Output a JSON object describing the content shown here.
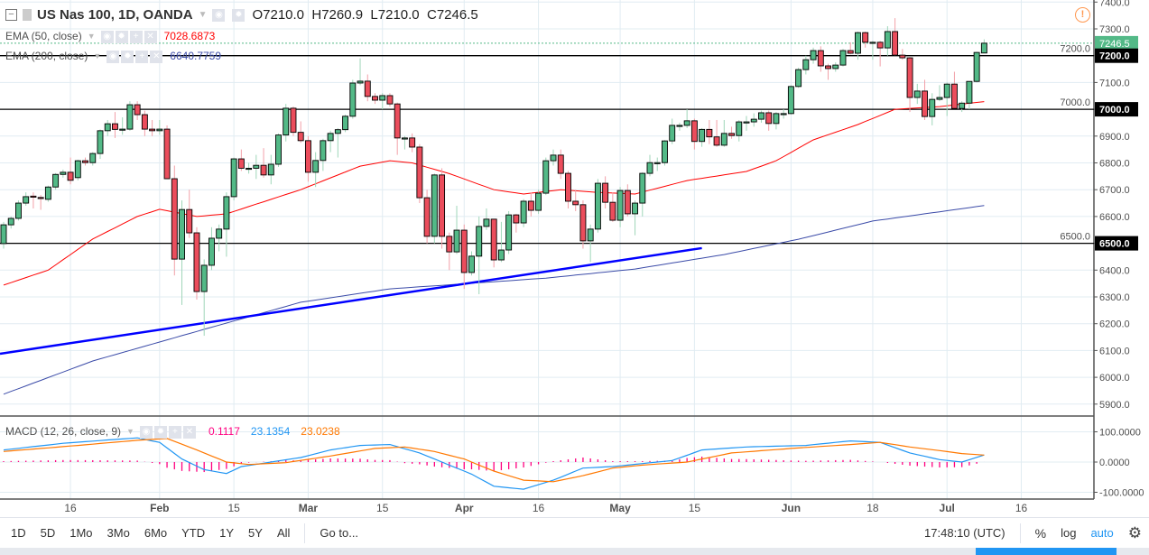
{
  "header": {
    "collapse_icon": "minus-square-icon",
    "symbol": "US Nas 100, 1D, OANDA",
    "open": "O7210.0",
    "high": "H7260.9",
    "low": "L7210.0",
    "close": "C7246.5"
  },
  "indicators": [
    {
      "label": "EMA (50, close)",
      "value": "7028.6873",
      "color": "#ff0000"
    },
    {
      "label": "EMA (200, close)",
      "value": "6640.7759",
      "color": "#3b4ba8"
    }
  ],
  "macd_legend": {
    "label": "MACD (12, 26, close, 9)",
    "hist": "0.1117",
    "macd": "23.1354",
    "signal": "23.0238",
    "hist_color": "#ff0080",
    "macd_color": "#2196f3",
    "signal_color": "#ff7800"
  },
  "alert_icon": "exclamation-circle-icon",
  "colors": {
    "up": "#53b987",
    "down": "#eb4d5c",
    "trendline": "#0000ff",
    "grid": "#e1ecf2"
  },
  "chart_data": {
    "type": "candlestick",
    "x_tick_labels": [
      "16",
      "Feb",
      "15",
      "Mar",
      "15",
      "Apr",
      "16",
      "May",
      "15",
      "Jun",
      "18",
      "Jul",
      "16"
    ],
    "x_tick_bar_index": [
      9,
      21,
      31,
      41,
      51,
      62,
      72,
      83,
      93,
      106,
      117,
      127,
      137
    ],
    "y_tick_labels": [
      "7400.0",
      "7300.0",
      "7200.0",
      "7100.0",
      "7000.0",
      "6900.0",
      "6800.0",
      "6700.0",
      "6600.0",
      "6500.0",
      "6400.0",
      "6300.0",
      "6200.0",
      "6100.0",
      "6000.0",
      "5900.0"
    ],
    "ylim": [
      5870,
      7405
    ],
    "price_labels": [
      {
        "text": "7246.5",
        "kind": "last"
      },
      {
        "text": "7200.0",
        "kind": "hline"
      },
      {
        "text": "7000.0",
        "kind": "hline"
      },
      {
        "text": "6500.0",
        "kind": "hline"
      }
    ],
    "horizontal_lines": [
      7200,
      7000,
      6500
    ],
    "trendline": {
      "from": [
        0,
        6088
      ],
      "to": [
        94,
        6482
      ]
    },
    "candles": [
      [
        6499,
        6580,
        6480,
        6569
      ],
      [
        6569,
        6600,
        6555,
        6593
      ],
      [
        6593,
        6660,
        6585,
        6650
      ],
      [
        6650,
        6690,
        6640,
        6674
      ],
      [
        6676,
        6690,
        6630,
        6672
      ],
      [
        6671,
        6680,
        6625,
        6670
      ],
      [
        6664,
        6715,
        6655,
        6710
      ],
      [
        6710,
        6762,
        6700,
        6757
      ],
      [
        6757,
        6775,
        6745,
        6765
      ],
      [
        6765,
        6820,
        6720,
        6735
      ],
      [
        6745,
        6812,
        6735,
        6808
      ],
      [
        6808,
        6820,
        6790,
        6801
      ],
      [
        6801,
        6840,
        6790,
        6835
      ],
      [
        6835,
        6925,
        6815,
        6920
      ],
      [
        6920,
        6960,
        6900,
        6946
      ],
      [
        6946,
        6990,
        6893,
        6925
      ],
      [
        6925,
        6970,
        6905,
        6926
      ],
      [
        6926,
        7030,
        6920,
        7017
      ],
      [
        7017,
        7030,
        6960,
        6980
      ],
      [
        6980,
        6995,
        6900,
        6926
      ],
      [
        6926,
        6960,
        6900,
        6920
      ],
      [
        6920,
        6960,
        6905,
        6926
      ],
      [
        6926,
        6940,
        6740,
        6741
      ],
      [
        6741,
        6790,
        6380,
        6441
      ],
      [
        6441,
        6660,
        6270,
        6626
      ],
      [
        6626,
        6700,
        6520,
        6539
      ],
      [
        6539,
        6560,
        6290,
        6320
      ],
      [
        6320,
        6440,
        6155,
        6418
      ],
      [
        6418,
        6560,
        6400,
        6519
      ],
      [
        6519,
        6570,
        6470,
        6553
      ],
      [
        6553,
        6690,
        6450,
        6674
      ],
      [
        6674,
        6820,
        6660,
        6815
      ],
      [
        6815,
        6850,
        6770,
        6780
      ],
      [
        6780,
        6800,
        6760,
        6780
      ],
      [
        6780,
        6830,
        6740,
        6791
      ],
      [
        6791,
        6855,
        6745,
        6755
      ],
      [
        6755,
        6830,
        6720,
        6795
      ],
      [
        6795,
        6910,
        6785,
        6904
      ],
      [
        6904,
        7020,
        6880,
        7004
      ],
      [
        7004,
        7010,
        6900,
        6914
      ],
      [
        6914,
        6955,
        6875,
        6883
      ],
      [
        6883,
        6900,
        6730,
        6765
      ],
      [
        6765,
        6840,
        6710,
        6809
      ],
      [
        6809,
        6890,
        6770,
        6883
      ],
      [
        6883,
        6920,
        6840,
        6910
      ],
      [
        6910,
        6930,
        6820,
        6924
      ],
      [
        6924,
        6980,
        6915,
        6974
      ],
      [
        6974,
        7110,
        6965,
        7098
      ],
      [
        7098,
        7190,
        7090,
        7105
      ],
      [
        7105,
        7130,
        7030,
        7048
      ],
      [
        7048,
        7060,
        7020,
        7034
      ],
      [
        7034,
        7060,
        7000,
        7051
      ],
      [
        7051,
        7060,
        7010,
        7020
      ],
      [
        7020,
        7025,
        6830,
        6893
      ],
      [
        6893,
        6900,
        6850,
        6893
      ],
      [
        6893,
        6910,
        6840,
        6859
      ],
      [
        6859,
        6870,
        6650,
        6670
      ],
      [
        6670,
        6700,
        6500,
        6526
      ],
      [
        6526,
        6760,
        6500,
        6755
      ],
      [
        6755,
        6780,
        6480,
        6526
      ],
      [
        6526,
        6540,
        6400,
        6468
      ],
      [
        6468,
        6640,
        6460,
        6549
      ],
      [
        6549,
        6570,
        6330,
        6391
      ],
      [
        6391,
        6470,
        6380,
        6452
      ],
      [
        6452,
        6600,
        6310,
        6563
      ],
      [
        6563,
        6630,
        6550,
        6590
      ],
      [
        6590,
        6590,
        6410,
        6438
      ],
      [
        6438,
        6580,
        6430,
        6475
      ],
      [
        6475,
        6620,
        6460,
        6606
      ],
      [
        6606,
        6610,
        6540,
        6576
      ],
      [
        6576,
        6665,
        6560,
        6657
      ],
      [
        6657,
        6690,
        6600,
        6623
      ],
      [
        6623,
        6700,
        6610,
        6687
      ],
      [
        6687,
        6820,
        6680,
        6808
      ],
      [
        6808,
        6850,
        6790,
        6829
      ],
      [
        6829,
        6850,
        6740,
        6761
      ],
      [
        6761,
        6770,
        6630,
        6657
      ],
      [
        6657,
        6700,
        6620,
        6644
      ],
      [
        6644,
        6660,
        6480,
        6509
      ],
      [
        6509,
        6570,
        6430,
        6553
      ],
      [
        6553,
        6740,
        6540,
        6724
      ],
      [
        6724,
        6750,
        6630,
        6653
      ],
      [
        6653,
        6690,
        6580,
        6586
      ],
      [
        6586,
        6710,
        6560,
        6697
      ],
      [
        6697,
        6720,
        6600,
        6610
      ],
      [
        6610,
        6660,
        6530,
        6650
      ],
      [
        6650,
        6765,
        6600,
        6761
      ],
      [
        6761,
        6830,
        6750,
        6801
      ],
      [
        6801,
        6820,
        6770,
        6801
      ],
      [
        6801,
        6885,
        6790,
        6882
      ],
      [
        6882,
        6965,
        6870,
        6940
      ],
      [
        6940,
        6950,
        6920,
        6940
      ],
      [
        6940,
        7000,
        6930,
        6957
      ],
      [
        6957,
        6965,
        6850,
        6880
      ],
      [
        6880,
        6930,
        6860,
        6925
      ],
      [
        6925,
        6960,
        6870,
        6897
      ],
      [
        6897,
        6960,
        6860,
        6866
      ],
      [
        6866,
        6960,
        6860,
        6910
      ],
      [
        6910,
        6935,
        6890,
        6902
      ],
      [
        6902,
        6960,
        6880,
        6953
      ],
      [
        6953,
        6975,
        6920,
        6953
      ],
      [
        6953,
        6985,
        6935,
        6963
      ],
      [
        6963,
        6995,
        6950,
        6987
      ],
      [
        6987,
        6995,
        6920,
        6947
      ],
      [
        6947,
        6990,
        6925,
        6984
      ],
      [
        6984,
        7000,
        6965,
        6984
      ],
      [
        6984,
        7090,
        6980,
        7085
      ],
      [
        7085,
        7155,
        7080,
        7148
      ],
      [
        7148,
        7200,
        7130,
        7185
      ],
      [
        7185,
        7230,
        7170,
        7219
      ],
      [
        7219,
        7235,
        7140,
        7162
      ],
      [
        7162,
        7170,
        7110,
        7152
      ],
      [
        7152,
        7175,
        7140,
        7165
      ],
      [
        7165,
        7225,
        7160,
        7219
      ],
      [
        7219,
        7250,
        7205,
        7209
      ],
      [
        7209,
        7290,
        7185,
        7286
      ],
      [
        7286,
        7290,
        7230,
        7250
      ],
      [
        7250,
        7255,
        7185,
        7250
      ],
      [
        7250,
        7255,
        7160,
        7229
      ],
      [
        7229,
        7310,
        7200,
        7290
      ],
      [
        7290,
        7340,
        7200,
        7202
      ],
      [
        7202,
        7225,
        7185,
        7192
      ],
      [
        7192,
        7195,
        6990,
        7044
      ],
      [
        7044,
        7095,
        7020,
        7068
      ],
      [
        7068,
        7110,
        6960,
        6973
      ],
      [
        6973,
        7060,
        6940,
        7037
      ],
      [
        7037,
        7090,
        7030,
        7044
      ],
      [
        7044,
        7100,
        6975,
        7094
      ],
      [
        7094,
        7140,
        7003,
        7003
      ],
      [
        7003,
        7030,
        6990,
        7023
      ],
      [
        7023,
        7104,
        7000,
        7104
      ],
      [
        7104,
        7215,
        7100,
        7212
      ],
      [
        7210,
        7260.9,
        7210,
        7246.5
      ]
    ],
    "ema50": [
      [
        0,
        6344
      ],
      [
        6,
        6400
      ],
      [
        12,
        6516
      ],
      [
        18,
        6600
      ],
      [
        21,
        6627
      ],
      [
        26,
        6600
      ],
      [
        30,
        6610
      ],
      [
        40,
        6700
      ],
      [
        48,
        6788
      ],
      [
        52,
        6808
      ],
      [
        55,
        6800
      ],
      [
        60,
        6760
      ],
      [
        66,
        6700
      ],
      [
        70,
        6684
      ],
      [
        75,
        6700
      ],
      [
        80,
        6690
      ],
      [
        85,
        6684
      ],
      [
        92,
        6734
      ],
      [
        100,
        6768
      ],
      [
        104,
        6808
      ],
      [
        109,
        6886
      ],
      [
        115,
        6943
      ],
      [
        120,
        7000
      ],
      [
        126,
        7010
      ],
      [
        132,
        7028.6873
      ]
    ],
    "ema200": [
      [
        0,
        5937
      ],
      [
        12,
        6061
      ],
      [
        27,
        6179
      ],
      [
        40,
        6280
      ],
      [
        52,
        6330
      ],
      [
        61,
        6347
      ],
      [
        73,
        6370
      ],
      [
        85,
        6404
      ],
      [
        97,
        6458
      ],
      [
        107,
        6515
      ],
      [
        117,
        6583
      ],
      [
        132,
        6640.7759
      ]
    ],
    "macd_pane": {
      "y_tick_labels": [
        "100.0000",
        "0.0000",
        "-100.0000"
      ],
      "ylim": [
        -120,
        140
      ],
      "macd": [
        [
          0,
          40
        ],
        [
          8,
          62
        ],
        [
          14,
          73
        ],
        [
          18,
          80
        ],
        [
          21,
          65
        ],
        [
          24,
          10
        ],
        [
          27,
          -25
        ],
        [
          30,
          -38
        ],
        [
          32,
          -15
        ],
        [
          36,
          0
        ],
        [
          40,
          15
        ],
        [
          44,
          40
        ],
        [
          48,
          55
        ],
        [
          52,
          58
        ],
        [
          56,
          30
        ],
        [
          60,
          -10
        ],
        [
          63,
          -40
        ],
        [
          66,
          -80
        ],
        [
          70,
          -90
        ],
        [
          74,
          -60
        ],
        [
          78,
          -20
        ],
        [
          82,
          -15
        ],
        [
          86,
          -5
        ],
        [
          90,
          5
        ],
        [
          94,
          40
        ],
        [
          100,
          50
        ],
        [
          108,
          55
        ],
        [
          114,
          70
        ],
        [
          118,
          65
        ],
        [
          122,
          30
        ],
        [
          126,
          8
        ],
        [
          129,
          0
        ],
        [
          132,
          23.1354
        ]
      ],
      "signal": [
        [
          0,
          35
        ],
        [
          10,
          55
        ],
        [
          18,
          72
        ],
        [
          22,
          78
        ],
        [
          26,
          40
        ],
        [
          30,
          0
        ],
        [
          33,
          -8
        ],
        [
          38,
          -2
        ],
        [
          44,
          20
        ],
        [
          50,
          45
        ],
        [
          54,
          50
        ],
        [
          58,
          35
        ],
        [
          62,
          10
        ],
        [
          66,
          -30
        ],
        [
          70,
          -60
        ],
        [
          74,
          -65
        ],
        [
          78,
          -45
        ],
        [
          82,
          -20
        ],
        [
          86,
          -10
        ],
        [
          92,
          0
        ],
        [
          98,
          30
        ],
        [
          106,
          45
        ],
        [
          114,
          58
        ],
        [
          118,
          65
        ],
        [
          122,
          50
        ],
        [
          126,
          38
        ],
        [
          129,
          28
        ],
        [
          132,
          23.0238
        ]
      ]
    }
  },
  "bottombar": {
    "ranges": [
      "1D",
      "5D",
      "1Mo",
      "3Mo",
      "6Mo",
      "YTD",
      "1Y",
      "5Y",
      "All"
    ],
    "goto": "Go to...",
    "time": "17:48:10 (UTC)",
    "percent": "%",
    "log": "log",
    "auto": "auto",
    "settings_icon": "gear-icon"
  }
}
